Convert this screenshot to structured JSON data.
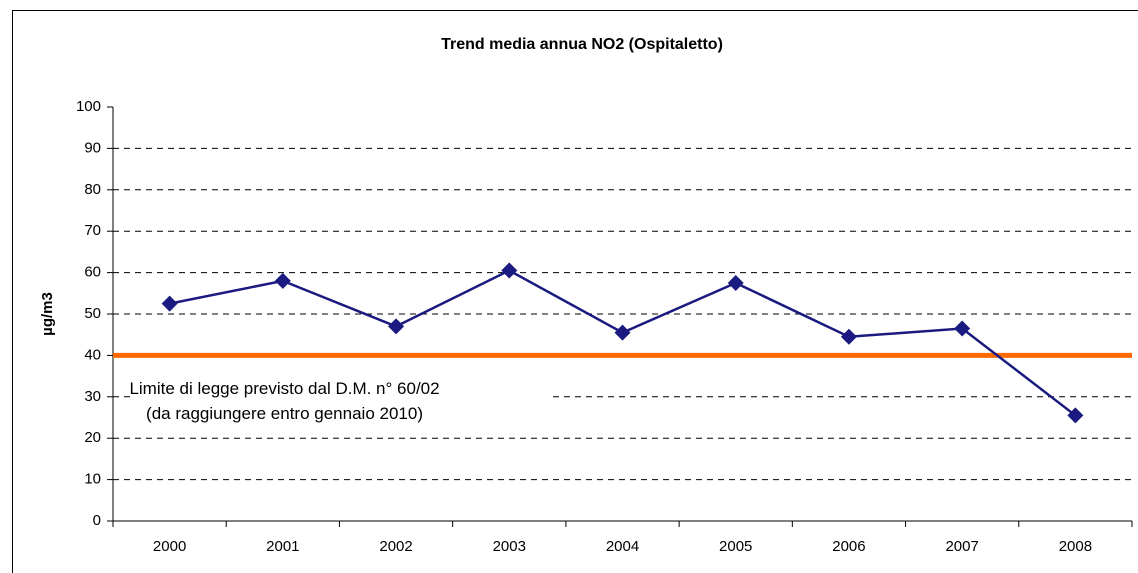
{
  "chart_data": {
    "type": "line",
    "title": "Trend media annua NO2 (Ospitaletto)",
    "y_label": "µg/m3",
    "categories": [
      "2000",
      "2001",
      "2002",
      "2003",
      "2004",
      "2005",
      "2006",
      "2007",
      "2008"
    ],
    "series": [
      {
        "name": "NO2",
        "color": "#1a1a80",
        "values": [
          52.5,
          58,
          47,
          60.5,
          45.5,
          57.5,
          44.5,
          46.5,
          25.5
        ]
      }
    ],
    "reference_line": {
      "value": 40,
      "color": "#ff6a00"
    },
    "annotations": [
      "Limite di legge previsto dal D.M. n° 60/02",
      "(da raggiungere entro gennaio 2010)"
    ],
    "ylim": [
      0,
      100
    ],
    "yticks": [
      0,
      10,
      20,
      30,
      40,
      50,
      60,
      70,
      80,
      90,
      100
    ],
    "grid": true
  }
}
